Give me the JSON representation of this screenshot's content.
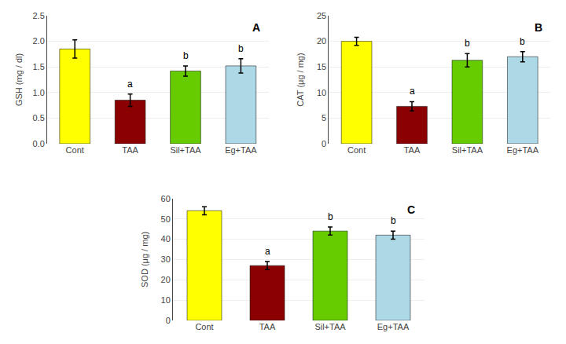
{
  "chart_data": [
    {
      "type": "bar",
      "title": "A",
      "ylabel": "GSH (mg / dl)",
      "categories": [
        "Cont",
        "TAA",
        "Sil+TAA",
        "Eg+TAA"
      ],
      "values": [
        1.85,
        0.85,
        1.42,
        1.52
      ],
      "errors": [
        0.18,
        0.12,
        0.1,
        0.14
      ],
      "colors": [
        "#ffff00",
        "#8b0000",
        "#66cc00",
        "#add8e6"
      ],
      "ylim": [
        0,
        2.5
      ],
      "yticks": [
        {
          "value": 0,
          "label": "0.0"
        },
        0.5,
        {
          "value": 1.0,
          "label": "1.0"
        },
        1.5,
        {
          "value": 2.0,
          "label": "2.0"
        },
        2.5
      ],
      "grid": true,
      "annotations": [
        {
          "category": "TAA",
          "text": "a"
        },
        {
          "category": "Sil+TAA",
          "text": "b"
        },
        {
          "category": "Eg+TAA",
          "text": "b"
        }
      ]
    },
    {
      "type": "bar",
      "title": "B",
      "ylabel": "CAT (μg / mg)",
      "categories": [
        "Cont",
        "TAA",
        "Sil+TAA",
        "Eg+TAA"
      ],
      "values": [
        20.0,
        7.3,
        16.3,
        17.0
      ],
      "errors": [
        0.8,
        0.9,
        1.3,
        1.0
      ],
      "colors": [
        "#ffff00",
        "#8b0000",
        "#66cc00",
        "#add8e6"
      ],
      "ylim": [
        0,
        25
      ],
      "yticks": [
        0,
        5,
        10,
        15,
        20,
        25
      ],
      "grid": true,
      "annotations": [
        {
          "category": "TAA",
          "text": "a"
        },
        {
          "category": "Sil+TAA",
          "text": "b"
        },
        {
          "category": "Eg+TAA",
          "text": "b"
        }
      ]
    },
    {
      "type": "bar",
      "title": "C",
      "ylabel": "SOD (μg / mg)",
      "categories": [
        "Cont",
        "TAA",
        "Sil+TAA",
        "Eg+TAA"
      ],
      "values": [
        54.0,
        27.0,
        44.0,
        42.0
      ],
      "errors": [
        2.0,
        2.0,
        2.0,
        2.0
      ],
      "colors": [
        "#ffff00",
        "#8b0000",
        "#66cc00",
        "#add8e6"
      ],
      "ylim": [
        0,
        60
      ],
      "yticks": [
        0,
        10,
        20,
        30,
        40,
        50,
        60
      ],
      "grid": true,
      "annotations": [
        {
          "category": "TAA",
          "text": "a"
        },
        {
          "category": "Sil+TAA",
          "text": "b"
        },
        {
          "category": "Eg+TAA",
          "text": "b"
        }
      ]
    }
  ]
}
